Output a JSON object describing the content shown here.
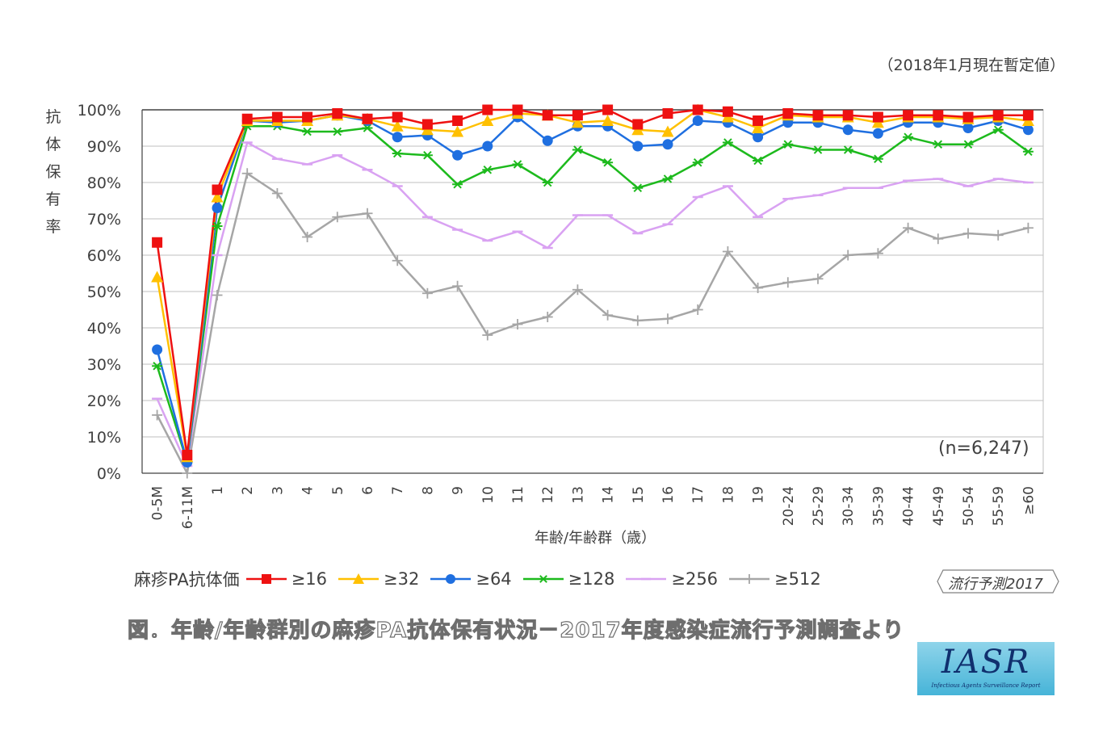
{
  "note": "（2018年1月現在暫定値）",
  "y_axis_label": [
    "抗",
    "体",
    "保",
    "有",
    "率"
  ],
  "sample_note": "(n=6,247)",
  "x_axis_title": "年齢/年齢群（歳）",
  "legend_title": "麻疹PA抗体価",
  "tag": "流行予測2017",
  "caption": "図．年齢/年齢群別の麻疹PA抗体保有状況－2017年度感染症流行予測調査より",
  "logo": {
    "main": "IASR",
    "sub": "Infectious Agents Surveillance Report"
  },
  "chart_data": {
    "type": "line",
    "categories": [
      "0-5M",
      "6-11M",
      "1",
      "2",
      "3",
      "4",
      "5",
      "6",
      "7",
      "8",
      "9",
      "10",
      "11",
      "12",
      "13",
      "14",
      "15",
      "16",
      "17",
      "18",
      "19",
      "20-24",
      "25-29",
      "30-34",
      "35-39",
      "40-44",
      "45-49",
      "50-54",
      "55-59",
      "≥60"
    ],
    "y_ticks": [
      "0%",
      "10%",
      "20%",
      "30%",
      "40%",
      "50%",
      "60%",
      "70%",
      "80%",
      "90%",
      "100%"
    ],
    "ylim": [
      0,
      100
    ],
    "grid": true,
    "series": [
      {
        "name": "≥16",
        "color": "#ee1111",
        "marker": "square",
        "values": [
          63.5,
          5,
          78,
          97.5,
          98,
          98,
          99,
          97.5,
          98,
          96,
          97,
          100,
          100,
          98.5,
          98.5,
          100,
          96,
          99,
          100,
          99.5,
          97,
          99,
          98.5,
          98.5,
          98,
          98.5,
          98.5,
          98,
          98.5,
          98.5
        ]
      },
      {
        "name": "≥32",
        "color": "#ffc000",
        "marker": "triangle",
        "values": [
          54,
          4.5,
          76,
          97,
          97,
          97,
          98.5,
          97.5,
          95.5,
          94.5,
          94,
          97,
          99,
          98.5,
          96.5,
          97,
          94.5,
          94,
          100,
          98,
          95,
          98.5,
          98,
          98,
          96.5,
          98,
          98,
          97.5,
          98,
          97
        ]
      },
      {
        "name": "≥64",
        "color": "#1f6fe0",
        "marker": "circle",
        "values": [
          34,
          3,
          73,
          97,
          96.5,
          97,
          98.5,
          97,
          92.5,
          93,
          87.5,
          90,
          98,
          91.5,
          95.5,
          95.5,
          90,
          90.5,
          97,
          96.5,
          92.5,
          96.5,
          96.5,
          94.5,
          93.5,
          96.5,
          96.5,
          95,
          97,
          94.5
        ]
      },
      {
        "name": "≥128",
        "color": "#1dba1d",
        "marker": "star",
        "values": [
          29.5,
          3,
          68,
          95.5,
          95.5,
          94,
          94,
          95,
          88,
          87.5,
          79.5,
          83.5,
          85,
          80,
          89,
          85.5,
          78.5,
          81,
          85.5,
          91,
          86,
          90.5,
          89,
          89,
          86.5,
          92.5,
          90.5,
          90.5,
          94.5,
          88.5
        ]
      },
      {
        "name": "≥256",
        "color": "#d9a2f2",
        "marker": "dash",
        "values": [
          20.5,
          2,
          60,
          91,
          86.5,
          85,
          87.5,
          83.5,
          79,
          70.5,
          67,
          64,
          66.5,
          62,
          71,
          71,
          66,
          68.5,
          76,
          79,
          70.5,
          75.5,
          76.5,
          78.5,
          78.5,
          80.5,
          81,
          79,
          81,
          80
        ]
      },
      {
        "name": "≥512",
        "color": "#a6a6a6",
        "marker": "plus",
        "values": [
          16,
          0,
          49,
          82.5,
          77,
          65,
          70.5,
          71.5,
          58.5,
          49.5,
          51.5,
          38,
          41,
          43,
          50.5,
          43.5,
          42,
          42.5,
          45,
          61,
          51,
          52.5,
          53.5,
          60,
          60.5,
          67.5,
          64.5,
          66,
          65.5,
          67.5
        ]
      }
    ]
  }
}
